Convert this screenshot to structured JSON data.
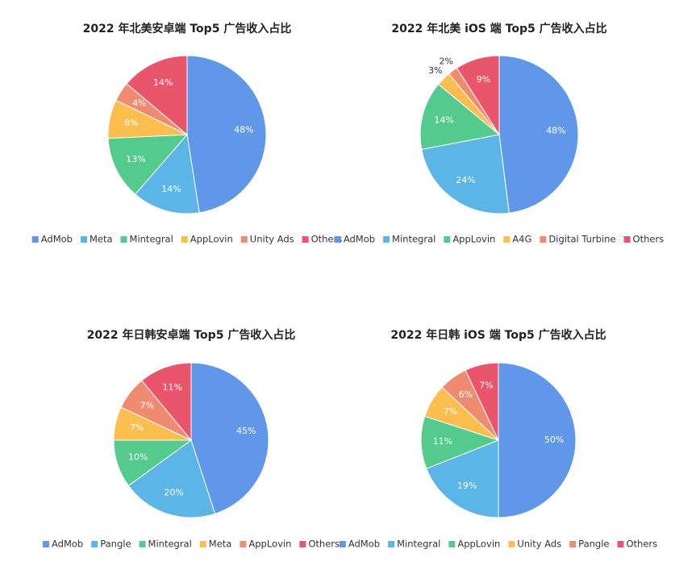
{
  "chart_data": [
    {
      "type": "pie",
      "title": "2022 年北美安卓端 Top5 广告收入占比",
      "categories": [
        "AdMob",
        "Meta",
        "Mintegral",
        "AppLovin",
        "Unity Ads",
        "Others"
      ],
      "values": [
        48,
        14,
        13,
        8,
        4,
        14
      ],
      "value_labels": [
        "48%",
        "14%",
        "13%",
        "8%",
        "4%",
        "14%"
      ],
      "colors": [
        "#6197e9",
        "#5bb5e6",
        "#55ca8d",
        "#fbbe4f",
        "#ef8b70",
        "#e9566c"
      ]
    },
    {
      "type": "pie",
      "title": "2022 年北美 iOS 端 Top5 广告收入占比",
      "categories": [
        "AdMob",
        "Mintegral",
        "AppLovin",
        "A4G",
        "Digital Turbine",
        "Others"
      ],
      "values": [
        48,
        24,
        14,
        3,
        2,
        9
      ],
      "value_labels": [
        "48%",
        "24%",
        "14%",
        "3%",
        "2%",
        "9%"
      ],
      "colors": [
        "#6197e9",
        "#5bb5e6",
        "#55ca8d",
        "#fbbe4f",
        "#ef8b70",
        "#e9566c"
      ]
    },
    {
      "type": "pie",
      "title": "2022 年日韩安卓端 Top5 广告收入占比",
      "categories": [
        "AdMob",
        "Pangle",
        "Mintegral",
        "Meta",
        "AppLovin",
        "Others"
      ],
      "values": [
        45,
        20,
        10,
        7,
        7,
        11
      ],
      "value_labels": [
        "45%",
        "20%",
        "10%",
        "7%",
        "7%",
        "11%"
      ],
      "colors": [
        "#6197e9",
        "#5bb5e6",
        "#55ca8d",
        "#fbbe4f",
        "#ef8b70",
        "#e9566c"
      ]
    },
    {
      "type": "pie",
      "title": "2022 年日韩 iOS 端 Top5 广告收入占比",
      "categories": [
        "AdMob",
        "Mintegral",
        "AppLovin",
        "Unity Ads",
        "Pangle",
        "Others"
      ],
      "values": [
        50,
        19,
        11,
        7,
        6,
        7
      ],
      "value_labels": [
        "50%",
        "19%",
        "11%",
        "7%",
        "6%",
        "7%"
      ],
      "colors": [
        "#6197e9",
        "#5bb5e6",
        "#55ca8d",
        "#fbbe4f",
        "#ef8b70",
        "#e9566c"
      ]
    }
  ]
}
